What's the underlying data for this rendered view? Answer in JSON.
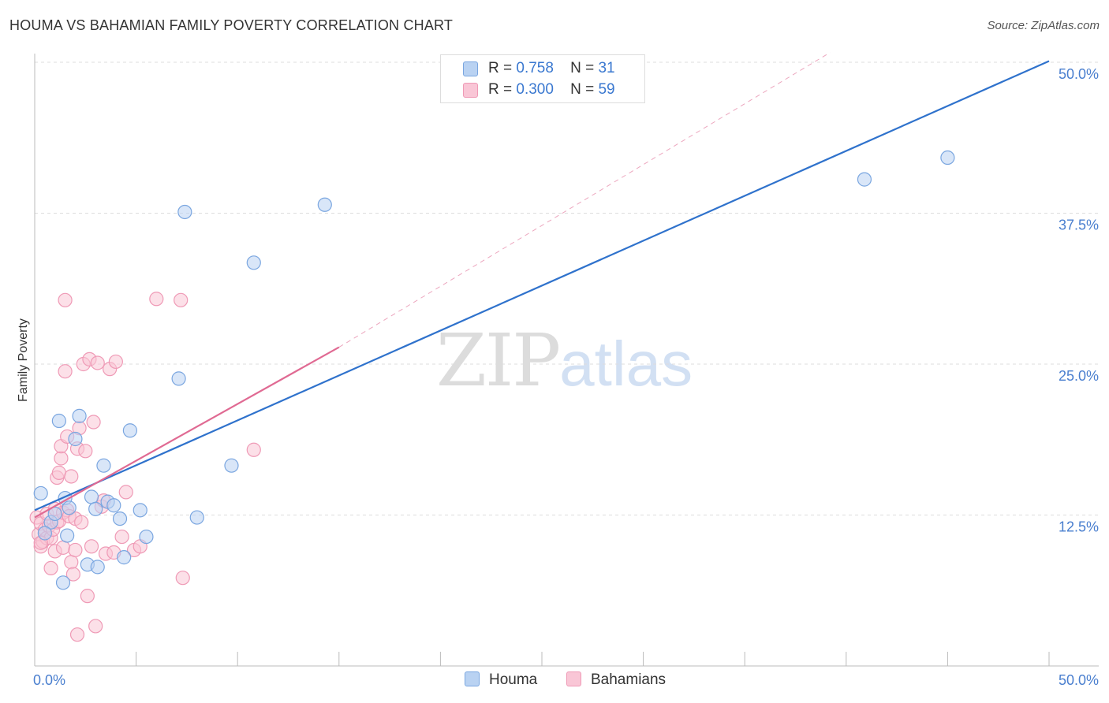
{
  "title": "HOUMA VS BAHAMIAN FAMILY POVERTY CORRELATION CHART",
  "source": "Source: ZipAtlas.com",
  "watermark": {
    "zip": "ZIP",
    "atlas": "atlas"
  },
  "legend": {
    "r_label": "R =",
    "n_label": "N =",
    "houma": {
      "r": "0.758",
      "n": "31"
    },
    "bahamians": {
      "r": "0.300",
      "n": "59"
    }
  },
  "colors": {
    "houma_fill": "#b9d2f2",
    "houma_stroke": "#7aa6e0",
    "houma_line": "#2f72cc",
    "bahamians_fill": "#f9c6d6",
    "bahamians_stroke": "#ef9ab6",
    "bahamians_line": "#e06a93",
    "tick_text": "#4a7fcf",
    "grid": "#dddddd"
  },
  "chart_data": {
    "type": "scatter",
    "title": "HOUMA VS BAHAMIAN FAMILY POVERTY CORRELATION CHART",
    "xlabel": "",
    "ylabel": "Family Poverty",
    "xlim": [
      0,
      50
    ],
    "ylim": [
      0,
      52
    ],
    "x_tick_labels": [
      "0.0%",
      "50.0%"
    ],
    "y_ticks": [
      12.5,
      25.0,
      37.5,
      50.0
    ],
    "y_tick_labels": [
      "12.5%",
      "25.0%",
      "37.5%",
      "50.0%"
    ],
    "series": [
      {
        "name": "Houma",
        "points": [
          [
            0.3,
            14.3
          ],
          [
            0.8,
            11.9
          ],
          [
            1.0,
            12.6
          ],
          [
            1.2,
            20.3
          ],
          [
            1.4,
            6.9
          ],
          [
            1.5,
            13.9
          ],
          [
            1.7,
            13.1
          ],
          [
            2.0,
            18.8
          ],
          [
            2.2,
            20.7
          ],
          [
            2.6,
            8.4
          ],
          [
            2.8,
            14.0
          ],
          [
            3.0,
            13.0
          ],
          [
            3.1,
            8.2
          ],
          [
            3.4,
            16.6
          ],
          [
            3.6,
            13.6
          ],
          [
            3.9,
            13.3
          ],
          [
            4.2,
            12.2
          ],
          [
            4.4,
            9.0
          ],
          [
            4.7,
            19.5
          ],
          [
            5.2,
            12.9
          ],
          [
            5.5,
            10.7
          ],
          [
            7.1,
            23.8
          ],
          [
            7.4,
            37.6
          ],
          [
            8.0,
            12.3
          ],
          [
            9.7,
            16.6
          ],
          [
            10.8,
            33.4
          ],
          [
            14.3,
            38.2
          ],
          [
            40.9,
            40.3
          ],
          [
            45.0,
            42.1
          ],
          [
            0.5,
            11.0
          ],
          [
            1.6,
            10.8
          ]
        ],
        "trend": {
          "x": [
            0,
            50
          ],
          "y": [
            12.9,
            50.1
          ]
        }
      },
      {
        "name": "Bahamians",
        "points": [
          [
            0.1,
            12.3
          ],
          [
            0.2,
            10.9
          ],
          [
            0.3,
            9.9
          ],
          [
            0.3,
            11.8
          ],
          [
            0.4,
            10.3
          ],
          [
            0.5,
            11.3
          ],
          [
            0.6,
            12.6
          ],
          [
            0.6,
            10.6
          ],
          [
            0.7,
            11.6
          ],
          [
            0.8,
            8.1
          ],
          [
            0.8,
            10.6
          ],
          [
            0.9,
            11.3
          ],
          [
            1.0,
            9.5
          ],
          [
            1.0,
            13.0
          ],
          [
            1.1,
            11.9
          ],
          [
            1.1,
            15.6
          ],
          [
            1.2,
            16.0
          ],
          [
            1.2,
            12.0
          ],
          [
            1.3,
            17.2
          ],
          [
            1.3,
            18.2
          ],
          [
            1.4,
            9.8
          ],
          [
            1.4,
            12.7
          ],
          [
            1.5,
            24.4
          ],
          [
            1.5,
            30.3
          ],
          [
            1.6,
            12.9
          ],
          [
            1.6,
            19.0
          ],
          [
            1.7,
            12.4
          ],
          [
            1.8,
            15.7
          ],
          [
            1.8,
            8.6
          ],
          [
            1.9,
            7.6
          ],
          [
            2.0,
            12.2
          ],
          [
            2.0,
            9.6
          ],
          [
            2.1,
            2.6
          ],
          [
            2.1,
            18.0
          ],
          [
            2.2,
            19.7
          ],
          [
            2.3,
            11.9
          ],
          [
            2.4,
            25.0
          ],
          [
            2.5,
            17.8
          ],
          [
            2.6,
            5.8
          ],
          [
            2.7,
            25.4
          ],
          [
            2.8,
            9.9
          ],
          [
            2.9,
            20.2
          ],
          [
            3.0,
            3.3
          ],
          [
            3.1,
            25.1
          ],
          [
            3.3,
            13.2
          ],
          [
            3.4,
            13.7
          ],
          [
            3.5,
            9.3
          ],
          [
            3.7,
            24.6
          ],
          [
            3.9,
            9.4
          ],
          [
            4.0,
            25.2
          ],
          [
            4.3,
            10.7
          ],
          [
            4.5,
            14.4
          ],
          [
            4.9,
            9.6
          ],
          [
            5.2,
            9.9
          ],
          [
            6.0,
            30.4
          ],
          [
            7.2,
            30.3
          ],
          [
            7.3,
            7.3
          ],
          [
            10.8,
            17.9
          ],
          [
            0.3,
            10.2
          ]
        ],
        "trend": {
          "x": [
            0,
            15
          ],
          "y": [
            12.3,
            26.4
          ]
        },
        "trend_dashed": {
          "x": [
            15,
            39.2
          ],
          "y": [
            26.4,
            50.8
          ]
        }
      }
    ],
    "legend": [
      "Houma",
      "Bahamians"
    ]
  }
}
